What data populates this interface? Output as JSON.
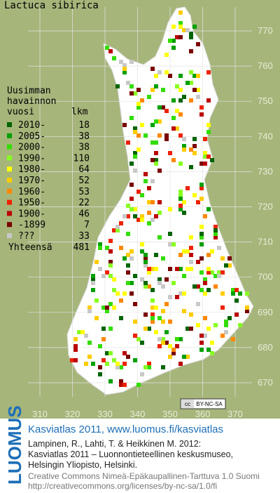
{
  "map": {
    "title": "Lactuca sibirica",
    "legend": {
      "heading": [
        "Uusimman",
        "havainnon",
        "vuosi"
      ],
      "count_header": "lkm",
      "rows": [
        {
          "label": "2010-",
          "count": 18,
          "color": "#006400"
        },
        {
          "label": "2005-",
          "count": 38,
          "color": "#00a000"
        },
        {
          "label": "2000-",
          "count": 38,
          "color": "#33dd00"
        },
        {
          "label": "1990-",
          "count": 110,
          "color": "#88ff22"
        },
        {
          "label": "1980-",
          "count": 64,
          "color": "#ffff00"
        },
        {
          "label": "1970-",
          "count": 52,
          "color": "#ffcc00"
        },
        {
          "label": "1960-",
          "count": 53,
          "color": "#ff8800"
        },
        {
          "label": "1950-",
          "count": 22,
          "color": "#ee2200"
        },
        {
          "label": "1900-",
          "count": 46,
          "color": "#bb0000"
        },
        {
          "label": "-1899",
          "count": 7,
          "color": "#7a0000"
        },
        {
          "label": "???",
          "count": 33,
          "color": "#c8c8c8"
        }
      ],
      "total_label": "Yhteensä",
      "total": 481
    },
    "y_labels": [
      "770",
      "760",
      "750",
      "740",
      "730",
      "720",
      "710",
      "700",
      "690",
      "680",
      "670"
    ],
    "x_labels": [
      "310",
      "320",
      "330",
      "340",
      "350",
      "360",
      "370"
    ],
    "license_badge": [
      "cc",
      "BY-NC-SA"
    ]
  },
  "footer": {
    "logo": "LUOMUS",
    "headline": "Kasviatlas 2011, www.luomus.fi/kasviatlas",
    "citation": [
      "Lampinen, R., Lahti, T. & Heikkinen M. 2012:",
      "Kasviatlas 2011 – Luonnontieteellinen keskusmuseo,",
      "Helsingin Yliopisto, Helsinki."
    ],
    "license": [
      "Creative Commons Nimeä-Epäkaupallinen-Tarttuva 1.0 Suomi",
      "http://creativecommons.org/licenses/by-nc-sa/1.0/fi"
    ]
  }
}
